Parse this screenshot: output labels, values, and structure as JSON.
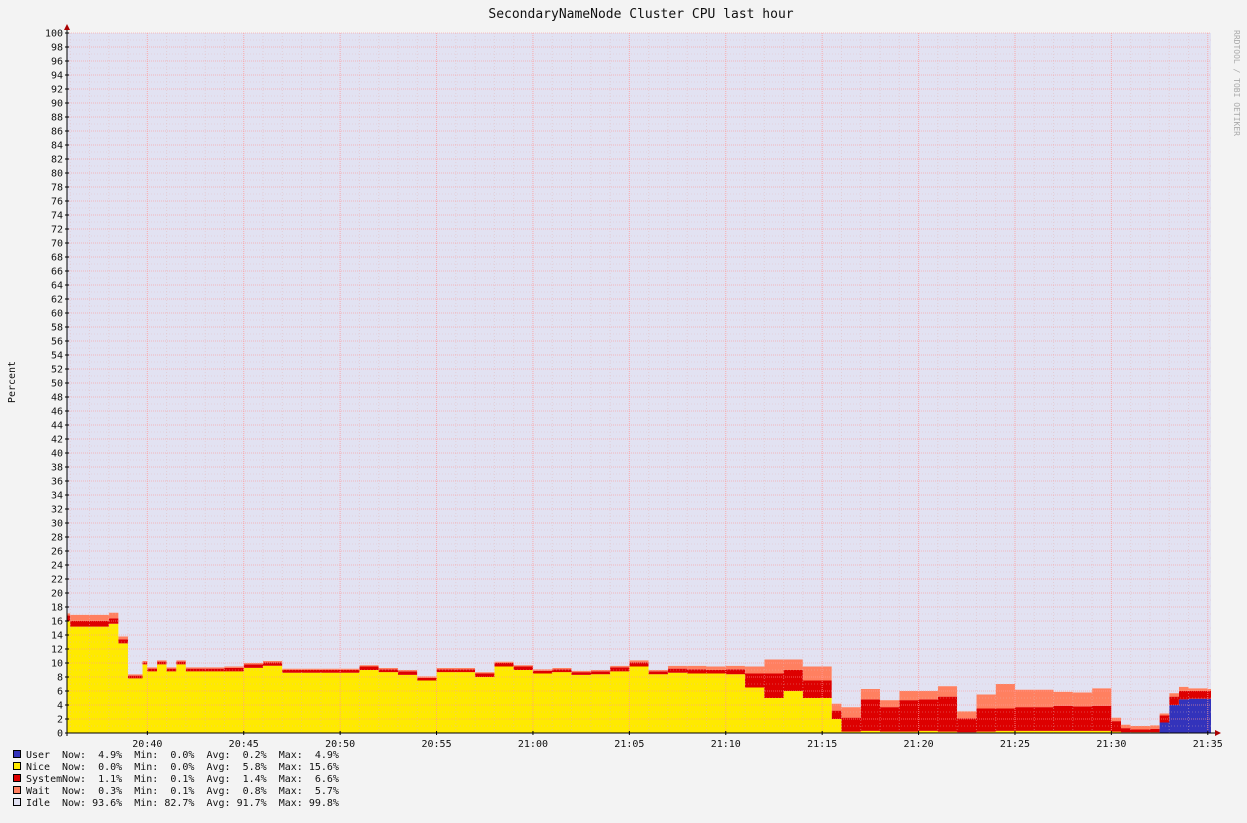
{
  "chart_data": {
    "type": "area",
    "title": "SecondaryNameNode Cluster CPU last hour",
    "xlabel": "",
    "ylabel": "Percent",
    "ylim": [
      0,
      100
    ],
    "y_ticks": [
      0,
      2,
      4,
      6,
      8,
      10,
      12,
      14,
      16,
      18,
      20,
      22,
      24,
      26,
      28,
      30,
      32,
      34,
      36,
      38,
      40,
      42,
      44,
      46,
      48,
      50,
      52,
      54,
      56,
      58,
      60,
      62,
      64,
      66,
      68,
      70,
      72,
      74,
      76,
      78,
      80,
      82,
      84,
      86,
      88,
      90,
      92,
      94,
      96,
      98,
      100
    ],
    "x_ticks": [
      "20:40",
      "20:45",
      "20:50",
      "20:55",
      "21:00",
      "21:05",
      "21:10",
      "21:15",
      "21:20",
      "21:25",
      "21:30",
      "21:35"
    ],
    "xlim": [
      "20:35:50",
      "21:35:10"
    ],
    "grid": true,
    "stacked": true,
    "side_label": "RRDTOOL / TOBI OETIKER",
    "x": [
      "20:35:50",
      "20:36:00",
      "20:37:00",
      "20:37:30",
      "20:38:00",
      "20:38:30",
      "20:39:00",
      "20:39:30",
      "20:39:45",
      "20:40:00",
      "20:40:30",
      "20:41:00",
      "20:41:30",
      "20:42:00",
      "20:43:00",
      "20:44:00",
      "20:45:00",
      "20:46:00",
      "20:47:00",
      "20:48:00",
      "20:50:00",
      "20:51:00",
      "20:52:00",
      "20:53:00",
      "20:54:00",
      "20:55:00",
      "20:56:00",
      "20:57:00",
      "20:58:00",
      "20:59:00",
      "21:00:00",
      "21:01:00",
      "21:02:00",
      "21:03:00",
      "21:04:00",
      "21:05:00",
      "21:06:00",
      "21:07:00",
      "21:08:00",
      "21:09:00",
      "21:10:00",
      "21:11:00",
      "21:12:00",
      "21:13:00",
      "21:14:00",
      "21:15:00",
      "21:15:30",
      "21:16:00",
      "21:17:00",
      "21:18:00",
      "21:19:00",
      "21:20:00",
      "21:21:00",
      "21:22:00",
      "21:23:00",
      "21:24:00",
      "21:25:00",
      "21:26:00",
      "21:27:00",
      "21:28:00",
      "21:29:00",
      "21:30:00",
      "21:30:30",
      "21:31:00",
      "21:32:00",
      "21:32:30",
      "21:33:00",
      "21:33:30",
      "21:34:00",
      "21:35:00"
    ],
    "series": [
      {
        "name": "User",
        "color": "#3333bb",
        "values": [
          0,
          0,
          0,
          0,
          0,
          0,
          0,
          0,
          0,
          0,
          0,
          0,
          0,
          0,
          0,
          0,
          0,
          0,
          0,
          0,
          0,
          0,
          0,
          0,
          0,
          0,
          0,
          0,
          0,
          0,
          0,
          0,
          0,
          0,
          0,
          0,
          0,
          0,
          0,
          0,
          0,
          0,
          0,
          0,
          0,
          0,
          0,
          0,
          0,
          0,
          0,
          0,
          0,
          0,
          0,
          0,
          0,
          0,
          0,
          0,
          0,
          0,
          0,
          0,
          0,
          1.5,
          4.0,
          4.8,
          4.9,
          4.9
        ]
      },
      {
        "name": "Nice",
        "color": "#ffea00",
        "values": [
          16.0,
          15.2,
          15.2,
          15.2,
          15.6,
          12.8,
          7.8,
          7.8,
          9.8,
          8.8,
          9.8,
          8.8,
          9.8,
          8.8,
          8.8,
          8.8,
          9.3,
          9.6,
          8.6,
          8.6,
          8.6,
          9.0,
          8.7,
          8.3,
          7.5,
          8.7,
          8.7,
          8.0,
          9.5,
          9.0,
          8.5,
          8.7,
          8.3,
          8.4,
          8.8,
          9.5,
          8.4,
          8.6,
          8.5,
          8.5,
          8.4,
          6.5,
          5.0,
          6.0,
          5.0,
          5.0,
          2.0,
          0.2,
          0.3,
          0.2,
          0.2,
          0.3,
          0.2,
          0.1,
          0.2,
          0.3,
          0.3,
          0.3,
          0.3,
          0.3,
          0.3,
          0.2,
          0.1,
          0.1,
          0.1,
          0,
          0,
          0,
          0,
          0
        ]
      },
      {
        "name": "System",
        "color": "#dd0000",
        "values": [
          0.8,
          0.8,
          0.8,
          0.8,
          0.8,
          0.6,
          0.4,
          0.4,
          0.3,
          0.4,
          0.4,
          0.4,
          0.4,
          0.4,
          0.4,
          0.5,
          0.5,
          0.5,
          0.4,
          0.4,
          0.4,
          0.5,
          0.4,
          0.5,
          0.4,
          0.4,
          0.4,
          0.5,
          0.5,
          0.5,
          0.4,
          0.4,
          0.4,
          0.4,
          0.6,
          0.6,
          0.4,
          0.6,
          0.6,
          0.5,
          0.7,
          2.0,
          3.5,
          3.0,
          2.5,
          2.5,
          1.2,
          2.0,
          4.5,
          3.5,
          4.5,
          4.5,
          5.0,
          2.0,
          3.3,
          3.2,
          3.4,
          3.4,
          3.6,
          3.5,
          3.6,
          1.5,
          0.6,
          0.4,
          0.5,
          1.0,
          1.2,
          1.2,
          1.1,
          1.1
        ]
      },
      {
        "name": "Wait",
        "color": "#ff8060",
        "values": [
          0.3,
          0.9,
          0.9,
          0.9,
          0.8,
          0.4,
          0.2,
          0.2,
          0.2,
          0.2,
          0.2,
          0.2,
          0.2,
          0.2,
          0.2,
          0.2,
          0.2,
          0.2,
          0.2,
          0.2,
          0.2,
          0.2,
          0.2,
          0.2,
          0.2,
          0.2,
          0.2,
          0.2,
          0.2,
          0.2,
          0.2,
          0.2,
          0.2,
          0.2,
          0.2,
          0.3,
          0.2,
          0.4,
          0.5,
          0.5,
          0.5,
          1.0,
          2.0,
          1.5,
          2.0,
          2.0,
          1.0,
          1.5,
          1.5,
          1.0,
          1.3,
          1.2,
          1.5,
          1.0,
          2.0,
          3.5,
          2.5,
          2.5,
          2.0,
          2.0,
          2.5,
          0.5,
          0.5,
          0.5,
          0.5,
          0.3,
          0.5,
          0.6,
          0.4,
          0.3
        ]
      },
      {
        "name": "Idle",
        "color": "#e2e2f2",
        "values": [
          82.9,
          83.1,
          83.1,
          83.1,
          82.8,
          86.2,
          91.6,
          91.6,
          89.7,
          90.6,
          89.6,
          90.6,
          89.6,
          90.6,
          90.6,
          90.5,
          90.0,
          89.7,
          90.8,
          90.8,
          90.8,
          90.3,
          90.7,
          91.0,
          91.9,
          90.7,
          90.7,
          91.3,
          89.8,
          90.3,
          90.9,
          90.7,
          91.1,
          91.0,
          90.4,
          89.6,
          91.0,
          90.4,
          90.4,
          90.5,
          90.4,
          90.5,
          89.5,
          89.5,
          90.5,
          90.5,
          95.8,
          96.3,
          93.7,
          95.3,
          94.0,
          94.0,
          93.3,
          96.9,
          94.5,
          93.0,
          93.8,
          93.8,
          94.1,
          94.2,
          93.6,
          97.8,
          98.8,
          99.0,
          98.9,
          97.2,
          94.3,
          93.4,
          93.6,
          93.7
        ]
      }
    ],
    "legend": [
      {
        "name": "User",
        "color": "#3333bb",
        "now": "4.9%",
        "min": "0.0%",
        "avg": "0.2%",
        "max": "4.9%"
      },
      {
        "name": "Nice",
        "color": "#ffea00",
        "now": "0.0%",
        "min": "0.0%",
        "avg": "5.8%",
        "max": "15.6%"
      },
      {
        "name": "System",
        "color": "#dd0000",
        "now": "1.1%",
        "min": "0.1%",
        "avg": "1.4%",
        "max": "6.6%"
      },
      {
        "name": "Wait",
        "color": "#ff8060",
        "now": "0.3%",
        "min": "0.1%",
        "avg": "0.8%",
        "max": "5.7%"
      },
      {
        "name": "Idle",
        "color": "#e2e2f2",
        "now": "93.6%",
        "min": "82.7%",
        "avg": "91.7%",
        "max": "99.8%"
      }
    ],
    "legend_labels": {
      "now": "Now:",
      "min": "Min:",
      "avg": "Avg:",
      "max": "Max:"
    }
  }
}
